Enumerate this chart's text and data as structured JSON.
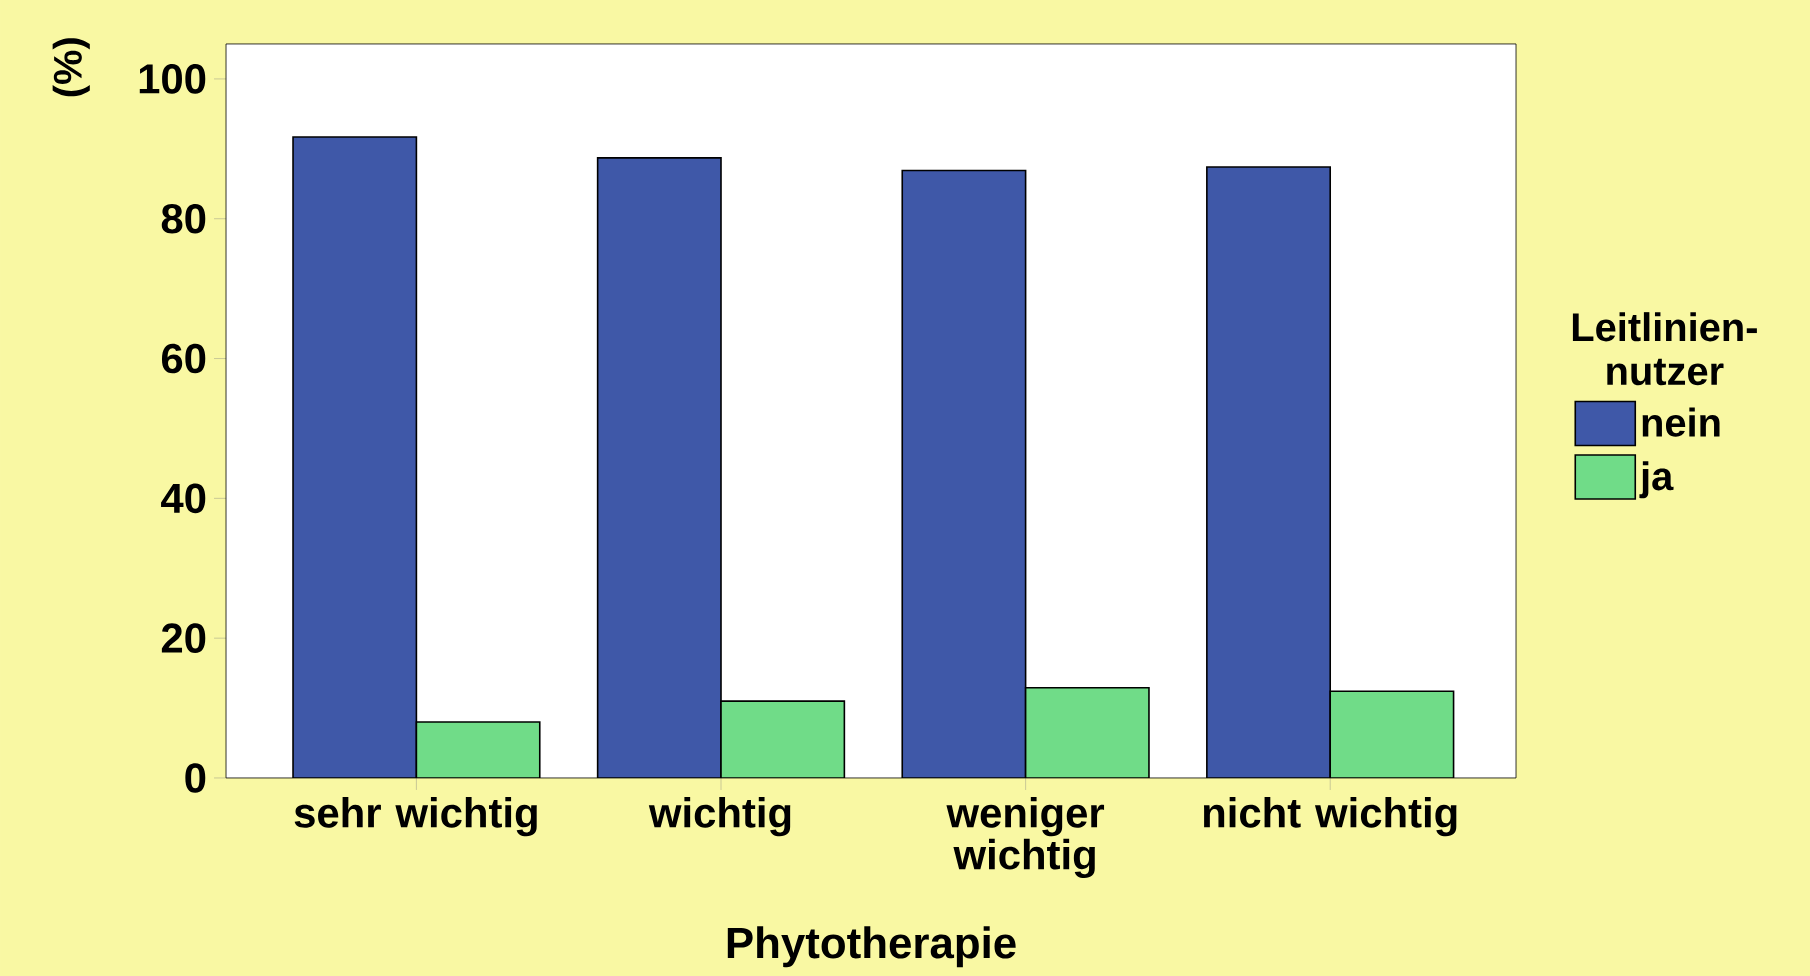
{
  "chart_data": {
    "type": "bar",
    "xlabel": "Phytotherapie",
    "ylabel": "(%)",
    "legend_title": "Leitlinien-nutzer",
    "categories": [
      "sehr wichtig",
      "wichtig",
      "weniger wichtig",
      "nicht wichtig"
    ],
    "series": [
      {
        "name": "nein",
        "color": "#3f58a8",
        "values": [
          91.7,
          88.7,
          86.9,
          87.4
        ]
      },
      {
        "name": "ja",
        "color": "#70dc88",
        "values": [
          8.0,
          11.0,
          12.9,
          12.4
        ]
      }
    ],
    "ylim": [
      0,
      105
    ],
    "yticks": [
      0,
      20,
      40,
      60,
      80,
      100
    ],
    "legend": "right"
  }
}
